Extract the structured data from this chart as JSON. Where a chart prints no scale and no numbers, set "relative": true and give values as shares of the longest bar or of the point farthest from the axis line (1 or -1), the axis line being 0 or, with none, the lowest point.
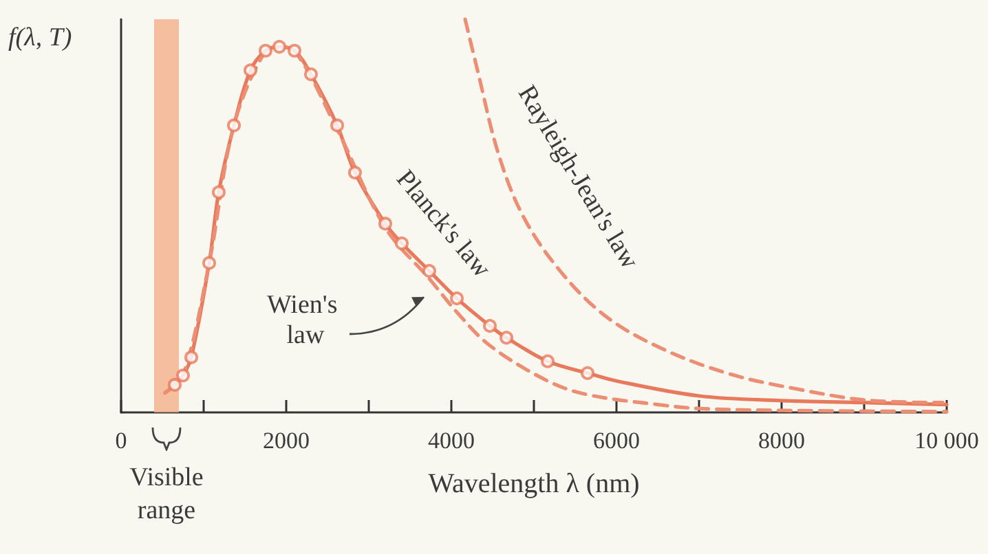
{
  "chart_data": {
    "type": "line",
    "xlabel": "Wavelength λ (nm)",
    "ylabel": "f(λ, T)",
    "relative": true,
    "xlim": [
      0,
      10000
    ],
    "xticks": [
      0,
      {
        "value": 1000,
        "label": null
      },
      2000,
      {
        "value": 3000,
        "label": null
      },
      4000,
      {
        "value": 5000,
        "label": null
      },
      6000,
      {
        "value": 7000,
        "label": null
      },
      8000,
      {
        "value": 9000,
        "label": null
      },
      {
        "value": 10000,
        "label": "10 000"
      }
    ],
    "grid": false,
    "legend": false,
    "series": [
      {
        "name": "Planck's law",
        "type": "line",
        "color": "#e9795c",
        "line_style": "solid",
        "marker": "none",
        "x": [
          533,
          650,
          750,
          850,
          1067,
          1183,
          1367,
          1567,
          1750,
          1917,
          2100,
          2300,
          2617,
          2833,
          3200,
          3400,
          3733,
          4067,
          4467,
          4667,
          5167,
          5650,
          6000,
          7000,
          8000,
          9000,
          10000
        ],
        "values": [
          0.05,
          0.07,
          0.094,
          0.14,
          0.38,
          0.56,
          0.73,
          0.87,
          0.92,
          0.93,
          0.92,
          0.86,
          0.73,
          0.61,
          0.48,
          0.43,
          0.36,
          0.29,
          0.22,
          0.19,
          0.13,
          0.1,
          0.08,
          0.042,
          0.03,
          0.025,
          0.02
        ]
      },
      {
        "type": "scatter",
        "color": "#e9795c",
        "marker": "circle",
        "x": [
          650,
          750,
          850,
          1067,
          1183,
          1367,
          1567,
          1750,
          1917,
          2100,
          2300,
          2617,
          2833,
          3200,
          3400,
          3733,
          4067,
          4467,
          4667,
          5167,
          5650
        ],
        "values": [
          0.07,
          0.094,
          0.14,
          0.38,
          0.56,
          0.73,
          0.87,
          0.92,
          0.93,
          0.92,
          0.86,
          0.73,
          0.61,
          0.48,
          0.43,
          0.36,
          0.29,
          0.22,
          0.19,
          0.13,
          0.1
        ]
      },
      {
        "name": "Wien's law",
        "type": "line",
        "color": "#ec8e74",
        "line_style": "dashed",
        "marker": "none",
        "x": [
          533,
          750,
          1067,
          1367,
          1750,
          1917,
          2100,
          2617,
          3200,
          3733,
          4067,
          4467,
          5167,
          5650,
          6500,
          7000,
          8000,
          10000
        ],
        "values": [
          0.05,
          0.094,
          0.38,
          0.73,
          0.92,
          0.93,
          0.92,
          0.72,
          0.47,
          0.34,
          0.255,
          0.17,
          0.08,
          0.045,
          0.02,
          0.01,
          0.005,
          0.002
        ]
      },
      {
        "name": "Rayleigh-Jean's law",
        "type": "line",
        "color": "#ec8e74",
        "line_style": "dashed",
        "marker": "none",
        "x": [
          4167,
          4317,
          4567,
          4867,
          5317,
          5867,
          6533,
          7367,
          8200,
          9033,
          9950
        ],
        "values": [
          1,
          0.87,
          0.66,
          0.5,
          0.36,
          0.245,
          0.164,
          0.098,
          0.059,
          0.031,
          0.025
        ]
      }
    ],
    "bands": [
      {
        "axis": "x",
        "from": 400,
        "to": 700,
        "label": "Visible range",
        "color": "#f5b48f"
      }
    ]
  }
}
